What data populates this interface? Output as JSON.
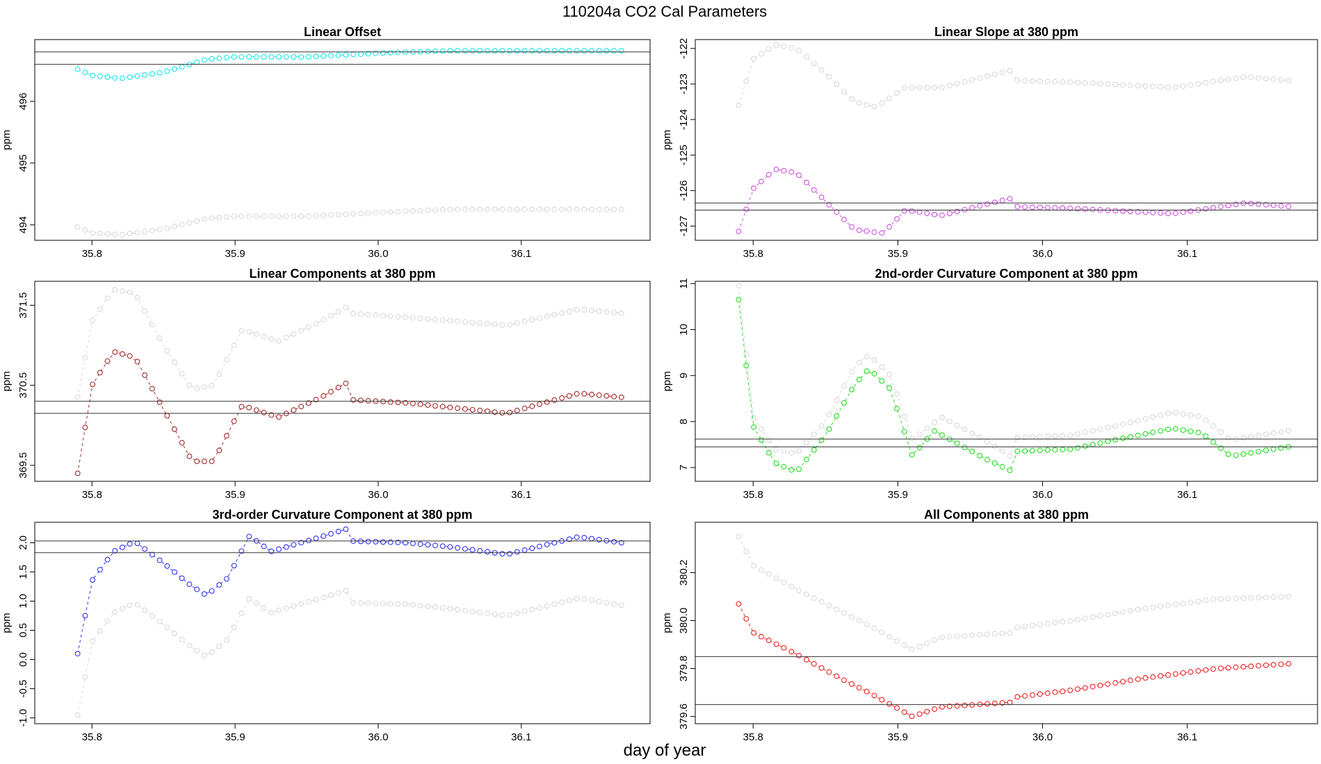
{
  "figure": {
    "title": "110204a    CO2 Cal Parameters",
    "xlabel": "day of year"
  },
  "chart_data": [
    {
      "type": "scatter",
      "title": "Linear Offset",
      "xlabel": "day of year",
      "ylabel": "ppm",
      "xlim": [
        35.76,
        36.19
      ],
      "ylim": [
        493.75,
        497.0
      ],
      "xticks": [
        35.8,
        35.9,
        36.0,
        36.1
      ],
      "yticks": [
        494.0,
        495.0,
        496.0
      ],
      "hlines": [
        496.8,
        496.6
      ],
      "series": [
        {
          "color": "#d8d8d8",
          "start": 35.79,
          "end": 36.17,
          "knots": [
            [
              35.79,
              493.97
            ],
            [
              35.8,
              493.87
            ],
            [
              35.82,
              493.84
            ],
            [
              35.85,
              493.93
            ],
            [
              35.88,
              494.1
            ],
            [
              35.9,
              494.14
            ],
            [
              35.95,
              494.14
            ],
            [
              36.0,
              494.2
            ],
            [
              36.05,
              494.25
            ],
            [
              36.17,
              494.25
            ]
          ]
        },
        {
          "color": "#19e6ea",
          "start": 35.79,
          "end": 36.17,
          "knots": [
            [
              35.79,
              496.52
            ],
            [
              35.8,
              496.42
            ],
            [
              35.82,
              496.37
            ],
            [
              35.85,
              496.47
            ],
            [
              35.88,
              496.68
            ],
            [
              35.9,
              496.72
            ],
            [
              35.95,
              496.72
            ],
            [
              36.0,
              496.78
            ],
            [
              36.05,
              496.82
            ],
            [
              36.17,
              496.82
            ]
          ]
        }
      ]
    },
    {
      "type": "scatter",
      "title": "Linear Slope at 380 ppm",
      "xlabel": "day of year",
      "ylabel": "ppm",
      "xlim": [
        35.76,
        36.19
      ],
      "ylim": [
        -127.4,
        -121.75
      ],
      "xticks": [
        35.8,
        35.9,
        36.0,
        36.1
      ],
      "yticks": [
        -127,
        -126,
        -125,
        -124,
        -123,
        -122
      ],
      "hlines": [
        -126.35,
        -126.55
      ],
      "series": [
        {
          "color": "#d8d8d8",
          "start": 35.79,
          "end": 36.17,
          "knots": [
            [
              35.79,
              -123.6
            ],
            [
              35.8,
              -122.3
            ],
            [
              35.815,
              -121.9
            ],
            [
              35.83,
              -122.0
            ],
            [
              35.85,
              -122.7
            ],
            [
              35.87,
              -123.5
            ],
            [
              35.885,
              -123.65
            ],
            [
              35.905,
              -123.1
            ],
            [
              35.93,
              -123.1
            ],
            [
              35.96,
              -122.8
            ],
            [
              35.98,
              -122.6
            ],
            [
              35.98,
              -122.9
            ],
            [
              36.02,
              -122.95
            ],
            [
              36.09,
              -123.1
            ],
            [
              36.14,
              -122.8
            ],
            [
              36.17,
              -122.9
            ]
          ]
        },
        {
          "color": "#cc55dd",
          "start": 35.79,
          "end": 36.17,
          "knots": [
            [
              35.79,
              -127.15
            ],
            [
              35.8,
              -125.95
            ],
            [
              35.815,
              -125.4
            ],
            [
              35.83,
              -125.5
            ],
            [
              35.85,
              -126.3
            ],
            [
              35.87,
              -127.1
            ],
            [
              35.89,
              -127.2
            ],
            [
              35.905,
              -126.55
            ],
            [
              35.93,
              -126.7
            ],
            [
              35.96,
              -126.4
            ],
            [
              35.98,
              -126.2
            ],
            [
              35.98,
              -126.45
            ],
            [
              36.02,
              -126.5
            ],
            [
              36.09,
              -126.65
            ],
            [
              36.14,
              -126.35
            ],
            [
              36.17,
              -126.45
            ]
          ]
        }
      ]
    },
    {
      "type": "scatter",
      "title": "Linear Components at 380 ppm",
      "xlabel": "day of year",
      "ylabel": "ppm",
      "xlim": [
        35.76,
        36.19
      ],
      "ylim": [
        369.3,
        371.8
      ],
      "xticks": [
        35.8,
        35.9,
        36.0,
        36.1
      ],
      "yticks": [
        369.5,
        370.5,
        371.5
      ],
      "hlines": [
        370.3,
        370.15
      ],
      "series": [
        {
          "color": "#d8d8d8",
          "start": 35.79,
          "end": 36.17,
          "knots": [
            [
              35.79,
              370.35
            ],
            [
              35.8,
              371.3
            ],
            [
              35.815,
              371.7
            ],
            [
              35.83,
              371.65
            ],
            [
              35.85,
              371.0
            ],
            [
              35.87,
              370.45
            ],
            [
              35.885,
              370.5
            ],
            [
              35.905,
              371.2
            ],
            [
              35.93,
              371.05
            ],
            [
              35.96,
              371.3
            ],
            [
              35.98,
              371.5
            ],
            [
              35.98,
              371.4
            ],
            [
              36.02,
              371.35
            ],
            [
              36.09,
              371.25
            ],
            [
              36.14,
              371.45
            ],
            [
              36.17,
              371.4
            ]
          ]
        },
        {
          "color": "#a52a2a",
          "start": 35.79,
          "end": 36.17,
          "knots": [
            [
              35.79,
              369.4
            ],
            [
              35.8,
              370.5
            ],
            [
              35.815,
              370.92
            ],
            [
              35.83,
              370.85
            ],
            [
              35.85,
              370.2
            ],
            [
              35.87,
              369.55
            ],
            [
              35.885,
              369.55
            ],
            [
              35.905,
              370.25
            ],
            [
              35.93,
              370.1
            ],
            [
              35.96,
              370.35
            ],
            [
              35.98,
              370.55
            ],
            [
              35.98,
              370.32
            ],
            [
              36.02,
              370.28
            ],
            [
              36.09,
              370.15
            ],
            [
              36.14,
              370.4
            ],
            [
              36.17,
              370.35
            ]
          ]
        }
      ]
    },
    {
      "type": "scatter",
      "title": "2nd-order Curvature Component at 380 ppm",
      "xlabel": "day of year",
      "ylabel": "ppm",
      "xlim": [
        35.76,
        36.19
      ],
      "ylim": [
        6.7,
        11.05
      ],
      "xticks": [
        35.8,
        35.9,
        36.0,
        36.1
      ],
      "yticks": [
        7,
        8,
        9,
        10,
        11
      ],
      "hlines": [
        7.62,
        7.45
      ],
      "series": [
        {
          "color": "#d8d8d8",
          "start": 35.79,
          "end": 36.17,
          "knots": [
            [
              35.79,
              10.95
            ],
            [
              35.8,
              8.1
            ],
            [
              35.815,
              7.4
            ],
            [
              35.83,
              7.3
            ],
            [
              35.85,
              8.0
            ],
            [
              35.87,
              9.2
            ],
            [
              35.88,
              9.45
            ],
            [
              35.895,
              9.0
            ],
            [
              35.91,
              7.6
            ],
            [
              35.93,
              8.1
            ],
            [
              35.96,
              7.6
            ],
            [
              35.98,
              7.2
            ],
            [
              35.98,
              7.65
            ],
            [
              36.02,
              7.7
            ],
            [
              36.05,
              7.9
            ],
            [
              36.09,
              8.2
            ],
            [
              36.11,
              8.1
            ],
            [
              36.13,
              7.6
            ],
            [
              36.17,
              7.8
            ]
          ]
        },
        {
          "color": "#22dd22",
          "start": 35.79,
          "end": 36.17,
          "knots": [
            [
              35.79,
              10.65
            ],
            [
              35.8,
              7.9
            ],
            [
              35.815,
              7.1
            ],
            [
              35.83,
              6.9
            ],
            [
              35.85,
              7.7
            ],
            [
              35.87,
              8.8
            ],
            [
              35.88,
              9.15
            ],
            [
              35.895,
              8.7
            ],
            [
              35.91,
              7.25
            ],
            [
              35.925,
              7.8
            ],
            [
              35.96,
              7.2
            ],
            [
              35.98,
              6.9
            ],
            [
              35.98,
              7.35
            ],
            [
              36.02,
              7.4
            ],
            [
              36.05,
              7.6
            ],
            [
              36.09,
              7.85
            ],
            [
              36.11,
              7.75
            ],
            [
              36.13,
              7.25
            ],
            [
              36.17,
              7.45
            ]
          ]
        }
      ]
    },
    {
      "type": "scatter",
      "title": "3rd-order Curvature Component at 380 ppm",
      "xlabel": "day of year",
      "ylabel": "ppm",
      "xlim": [
        35.76,
        36.19
      ],
      "ylim": [
        -1.1,
        2.35
      ],
      "xticks": [
        35.8,
        35.9,
        36.0,
        36.1
      ],
      "yticks": [
        -1.0,
        -0.5,
        0.0,
        0.5,
        1.0,
        1.5,
        2.0
      ],
      "hlines": [
        2.03,
        1.83
      ],
      "series": [
        {
          "color": "#d8d8d8",
          "start": 35.79,
          "end": 36.17,
          "knots": [
            [
              35.79,
              -0.95
            ],
            [
              35.8,
              0.3
            ],
            [
              35.815,
              0.8
            ],
            [
              35.83,
              0.97
            ],
            [
              35.85,
              0.6
            ],
            [
              35.87,
              0.2
            ],
            [
              35.88,
              0.05
            ],
            [
              35.895,
              0.35
            ],
            [
              35.91,
              1.05
            ],
            [
              35.925,
              0.8
            ],
            [
              35.96,
              1.05
            ],
            [
              35.98,
              1.2
            ],
            [
              35.98,
              0.97
            ],
            [
              36.02,
              0.95
            ],
            [
              36.05,
              0.87
            ],
            [
              36.09,
              0.75
            ],
            [
              36.14,
              1.05
            ],
            [
              36.17,
              0.93
            ]
          ]
        },
        {
          "color": "#3333ee",
          "start": 35.79,
          "end": 36.17,
          "knots": [
            [
              35.79,
              0.1
            ],
            [
              35.8,
              1.35
            ],
            [
              35.815,
              1.85
            ],
            [
              35.83,
              2.02
            ],
            [
              35.85,
              1.65
            ],
            [
              35.87,
              1.25
            ],
            [
              35.88,
              1.1
            ],
            [
              35.895,
              1.4
            ],
            [
              35.91,
              2.12
            ],
            [
              35.925,
              1.85
            ],
            [
              35.96,
              2.1
            ],
            [
              35.98,
              2.25
            ],
            [
              35.98,
              2.03
            ],
            [
              36.02,
              2.0
            ],
            [
              36.05,
              1.93
            ],
            [
              36.09,
              1.8
            ],
            [
              36.14,
              2.1
            ],
            [
              36.17,
              2.0
            ]
          ]
        }
      ]
    },
    {
      "type": "scatter",
      "title": "All Components at 380 ppm",
      "xlabel": "day of year",
      "ylabel": "ppm",
      "xlim": [
        35.76,
        36.19
      ],
      "ylim": [
        379.57,
        380.41
      ],
      "xticks": [
        35.8,
        35.9,
        36.0,
        36.1
      ],
      "yticks": [
        379.6,
        379.8,
        380.0,
        380.2
      ],
      "hlines": [
        379.85,
        379.65
      ],
      "series": [
        {
          "color": "#d8d8d8",
          "start": 35.79,
          "end": 36.17,
          "knots": [
            [
              35.79,
              380.35
            ],
            [
              35.8,
              380.23
            ],
            [
              35.83,
              380.13
            ],
            [
              35.86,
              380.04
            ],
            [
              35.88,
              379.98
            ],
            [
              35.91,
              379.88
            ],
            [
              35.93,
              379.93
            ],
            [
              35.98,
              379.95
            ],
            [
              35.98,
              379.97
            ],
            [
              36.02,
              380.0
            ],
            [
              36.07,
              380.05
            ],
            [
              36.12,
              380.09
            ],
            [
              36.17,
              380.1
            ]
          ]
        },
        {
          "color": "#ee2222",
          "start": 35.79,
          "end": 36.17,
          "knots": [
            [
              35.79,
              380.07
            ],
            [
              35.8,
              379.95
            ],
            [
              35.83,
              379.86
            ],
            [
              35.86,
              379.76
            ],
            [
              35.88,
              379.7
            ],
            [
              35.91,
              379.6
            ],
            [
              35.93,
              379.64
            ],
            [
              35.98,
              379.66
            ],
            [
              35.98,
              379.68
            ],
            [
              36.02,
              379.71
            ],
            [
              36.07,
              379.76
            ],
            [
              36.12,
              379.8
            ],
            [
              36.17,
              379.82
            ]
          ]
        }
      ]
    }
  ]
}
